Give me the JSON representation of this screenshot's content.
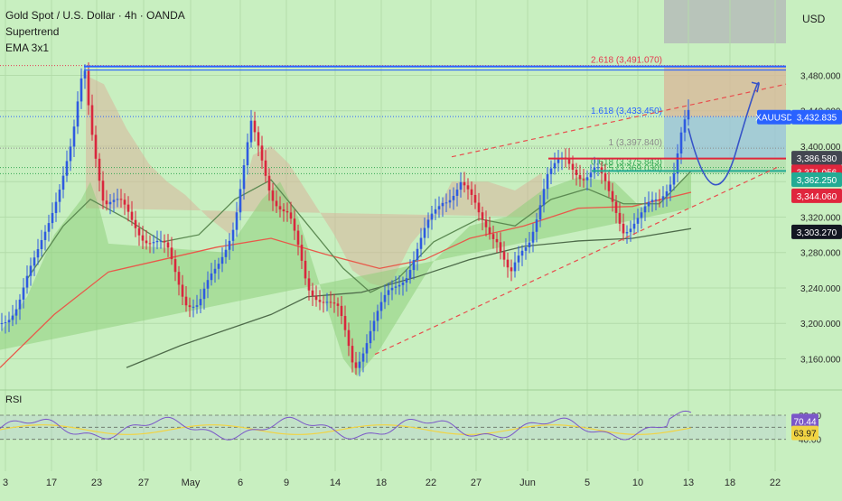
{
  "header": {
    "title": "Gold Spot / U.S. Dollar · 4h · OANDA",
    "indicator_1": "Supertrend",
    "indicator_2": "EMA 3x1",
    "currency": "USD"
  },
  "rsi_pane": {
    "label": "RSI",
    "levels": [
      "80.00",
      "40.00"
    ],
    "rsi_value": "70.44",
    "rsi_ma_value": "63.97",
    "rsi_color": "#7b57c8",
    "rsi_ma_color": "#f1d443"
  },
  "chart_data": {
    "type": "candlestick",
    "symbol": "XAUUSD",
    "title": "Gold Spot / U.S. Dollar · 4h · OANDA",
    "y_ticks": [
      "3,480.000",
      "3,440.000",
      "3,400.000",
      "3,360.000",
      "3,320.000",
      "3,280.000",
      "3,240.000",
      "3,200.000",
      "3,160.000"
    ],
    "ylim": [
      3135,
      3510
    ],
    "x_ticks": [
      "3",
      "17",
      "23",
      "27",
      "May",
      "6",
      "9",
      "14",
      "18",
      "22",
      "27",
      "Jun",
      "5",
      "10",
      "13",
      "18",
      "22"
    ],
    "price_labels": [
      {
        "text": "XAUUSD",
        "value": 3432.835,
        "color": "#2962ff"
      },
      {
        "text": "3,432.835",
        "value": 3432.835,
        "color": "#2962ff"
      },
      {
        "text": "3,386.580",
        "value": 3386.58,
        "color": "#434651"
      },
      {
        "text": "3,371.056",
        "value": 3371.056,
        "color": "#e0263d"
      },
      {
        "text": "3,362.250",
        "value": 3362.25,
        "color": "#22ab94"
      },
      {
        "text": "3,344.060",
        "value": 3344.06,
        "color": "#e0263d"
      },
      {
        "text": "3,303.270",
        "value": 3303.27,
        "color": "#131722"
      }
    ],
    "fibonacci": [
      {
        "label": "2.618 (3,491.070)",
        "value": 3491.07,
        "color": "#e53950"
      },
      {
        "label": "1.618 (3,433.450)",
        "value": 3433.45,
        "color": "#2962ff"
      },
      {
        "label": "1 (3,397.840)",
        "value": 3397.84,
        "color": "#8a8a8a"
      },
      {
        "label": "0.618 (3,375.843)",
        "value": 3375.843,
        "color": "#34a853"
      },
      {
        "label": "0.5 (3,369.030)",
        "value": 3369.03,
        "color": "#34a853"
      }
    ],
    "series": [
      {
        "name": "EMA",
        "color": "#e8594a",
        "points": [
          [
            0,
            3150
          ],
          [
            60,
            3210
          ],
          [
            120,
            3258
          ],
          [
            180,
            3272
          ],
          [
            240,
            3286
          ],
          [
            300,
            3296
          ],
          [
            360,
            3278
          ],
          [
            420,
            3262
          ],
          [
            470,
            3272
          ],
          [
            520,
            3296
          ],
          [
            580,
            3310
          ],
          [
            640,
            3330
          ],
          [
            700,
            3332
          ],
          [
            765,
            3348
          ]
        ]
      },
      {
        "name": "EMA",
        "color": "#4e6b4a",
        "points": [
          [
            140,
            3150
          ],
          [
            200,
            3175
          ],
          [
            260,
            3196
          ],
          [
            300,
            3210
          ],
          [
            340,
            3230
          ],
          [
            400,
            3235
          ],
          [
            460,
            3252
          ],
          [
            520,
            3272
          ],
          [
            580,
            3287
          ],
          [
            640,
            3293
          ],
          [
            700,
            3296
          ],
          [
            765,
            3307
          ]
        ]
      },
      {
        "name": "EMA",
        "color": "#5c8a52",
        "points": [
          [
            30,
            3250
          ],
          [
            70,
            3310
          ],
          [
            100,
            3340
          ],
          [
            140,
            3318
          ],
          [
            180,
            3292
          ],
          [
            220,
            3300
          ],
          [
            260,
            3340
          ],
          [
            300,
            3362
          ],
          [
            340,
            3312
          ],
          [
            380,
            3262
          ],
          [
            410,
            3235
          ],
          [
            440,
            3250
          ],
          [
            480,
            3292
          ],
          [
            530,
            3318
          ],
          [
            570,
            3310
          ],
          [
            610,
            3340
          ],
          [
            650,
            3352
          ],
          [
            690,
            3335
          ],
          [
            730,
            3335
          ],
          [
            765,
            3372
          ]
        ]
      }
    ],
    "channel": {
      "color": "#e84d4d",
      "upper": [
        [
          500,
          3388
        ],
        [
          870,
          3470
        ]
      ],
      "lower": [
        [
          415,
          3165
        ],
        [
          860,
          3376
        ]
      ]
    },
    "price_rays": [
      {
        "value": 3490,
        "x_start": 93,
        "x_end": 870,
        "color": "#2962ff"
      },
      {
        "value": 3386,
        "x_start": 607,
        "x_end": 870,
        "color": "#e0263d"
      },
      {
        "value": 3372,
        "x_start": 655,
        "x_end": 870,
        "color": "#22ab94"
      }
    ],
    "forecast_path": {
      "color": "#3754c8",
      "points": [
        [
          762,
          3420
        ],
        [
          790,
          3368
        ],
        [
          815,
          3395
        ],
        [
          840,
          3470
        ]
      ]
    },
    "volume_rect": {
      "x": [
        735,
        870
      ],
      "y": [
        3386,
        3490
      ]
    }
  }
}
